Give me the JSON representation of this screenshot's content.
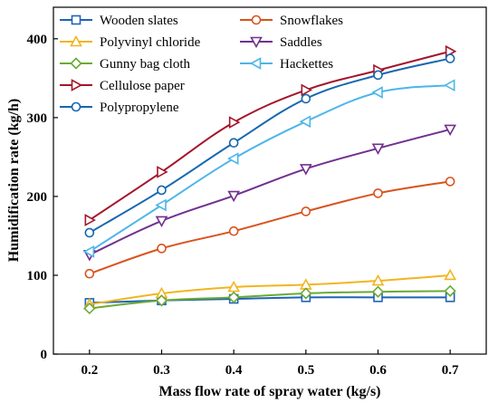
{
  "chart_data": {
    "type": "line",
    "xlabel": "Mass flow rate of spray water (kg/s)",
    "ylabel": "Humidification rate (kg/h)",
    "x": [
      0.2,
      0.3,
      0.4,
      0.5,
      0.6,
      0.7
    ],
    "xticks": [
      "0.2",
      "0.3",
      "0.4",
      "0.5",
      "0.6",
      "0.7"
    ],
    "xlim": [
      0.15,
      0.75
    ],
    "ylim": [
      0,
      440
    ],
    "yticks": [
      "0",
      "100",
      "200",
      "300",
      "400"
    ],
    "grid": false,
    "legend_position": "top-left",
    "series": [
      {
        "name": "Wooden slates",
        "color": "#1f63b5",
        "marker": "square",
        "values": [
          65,
          68,
          70,
          72,
          72,
          72
        ]
      },
      {
        "name": "Polyvinyl chloride",
        "color": "#f2b51f",
        "marker": "triangle-up",
        "values": [
          63,
          77,
          85,
          88,
          93,
          100
        ]
      },
      {
        "name": "Gunny bag cloth",
        "color": "#6aaa33",
        "marker": "diamond",
        "values": [
          58,
          68,
          72,
          77,
          79,
          80
        ]
      },
      {
        "name": "Cellulose paper",
        "color": "#a3162b",
        "marker": "triangle-right",
        "values": [
          170,
          231,
          294,
          335,
          360,
          384
        ]
      },
      {
        "name": "Polypropylene",
        "color": "#1567b0",
        "marker": "circle",
        "values": [
          154,
          208,
          268,
          324,
          354,
          375
        ]
      },
      {
        "name": "Snowflakes",
        "color": "#d9531e",
        "marker": "circle",
        "values": [
          102,
          134,
          156,
          181,
          204,
          219
        ]
      },
      {
        "name": "Saddles",
        "color": "#72308f",
        "marker": "triangle-down",
        "values": [
          126,
          169,
          201,
          235,
          261,
          285
        ]
      },
      {
        "name": "Hackettes",
        "color": "#4db6e8",
        "marker": "triangle-left",
        "values": [
          130,
          189,
          248,
          295,
          332,
          341
        ]
      }
    ]
  }
}
